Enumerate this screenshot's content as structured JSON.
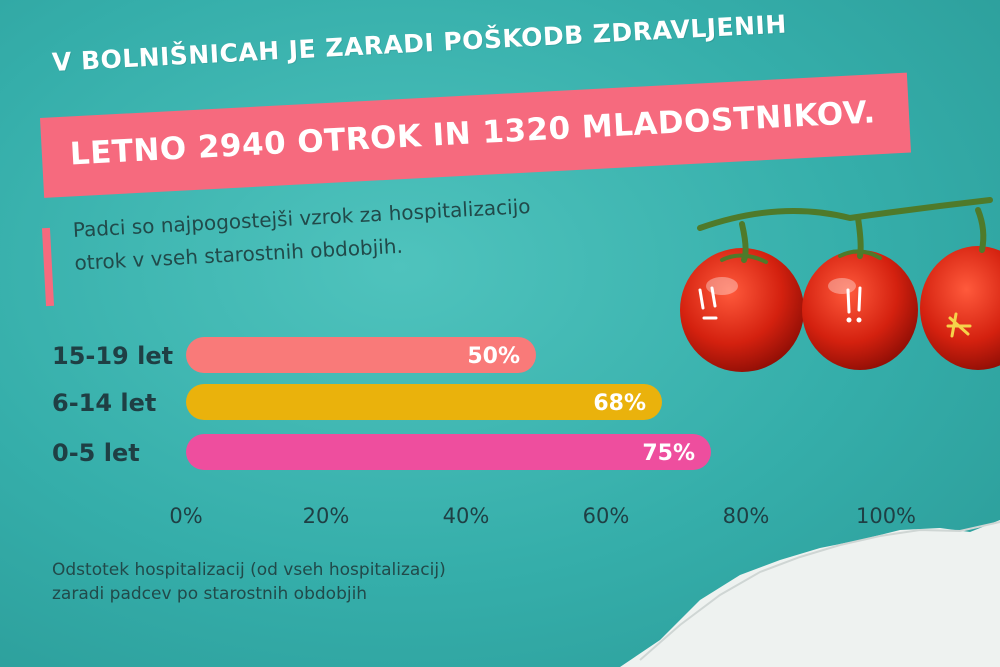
{
  "headline": {
    "line1": "V BOLNIŠNICAH JE ZARADI POŠKODB ZDRAVLJENIH",
    "line2": "LETNO 2940 OTROK IN 1320 MLADOSTNIKOV."
  },
  "subtitle": {
    "line1": "Padci so najpogostejši vzrok za hospitalizacijo",
    "line2": "otrok v vseh starostnih obdobjih."
  },
  "footnote": {
    "line1": "Odstotek hospitalizacij (od vseh hospitalizacij)",
    "line2": "zaradi padcev po starostnih obdobjih"
  },
  "colors": {
    "accent": "#f66a7e",
    "bar_15_19": "#f97a79",
    "bar_6_14": "#eab20c",
    "bar_0_5": "#ee4e9e",
    "background": "#3fb8b3"
  },
  "decoration": {
    "tomato_icon": "tomato-icon",
    "stem_icon": "vine-stem-icon"
  },
  "chart_data": {
    "type": "bar",
    "orientation": "horizontal",
    "categories": [
      "15-19 let",
      "6-14 let",
      "0-5 let"
    ],
    "values": [
      50,
      68,
      75
    ],
    "value_labels": [
      "50%",
      "68%",
      "75%"
    ],
    "xlim": [
      0,
      100
    ],
    "x_ticks": [
      "0%",
      "20%",
      "40%",
      "60%",
      "80%",
      "100%"
    ],
    "grid": false
  }
}
